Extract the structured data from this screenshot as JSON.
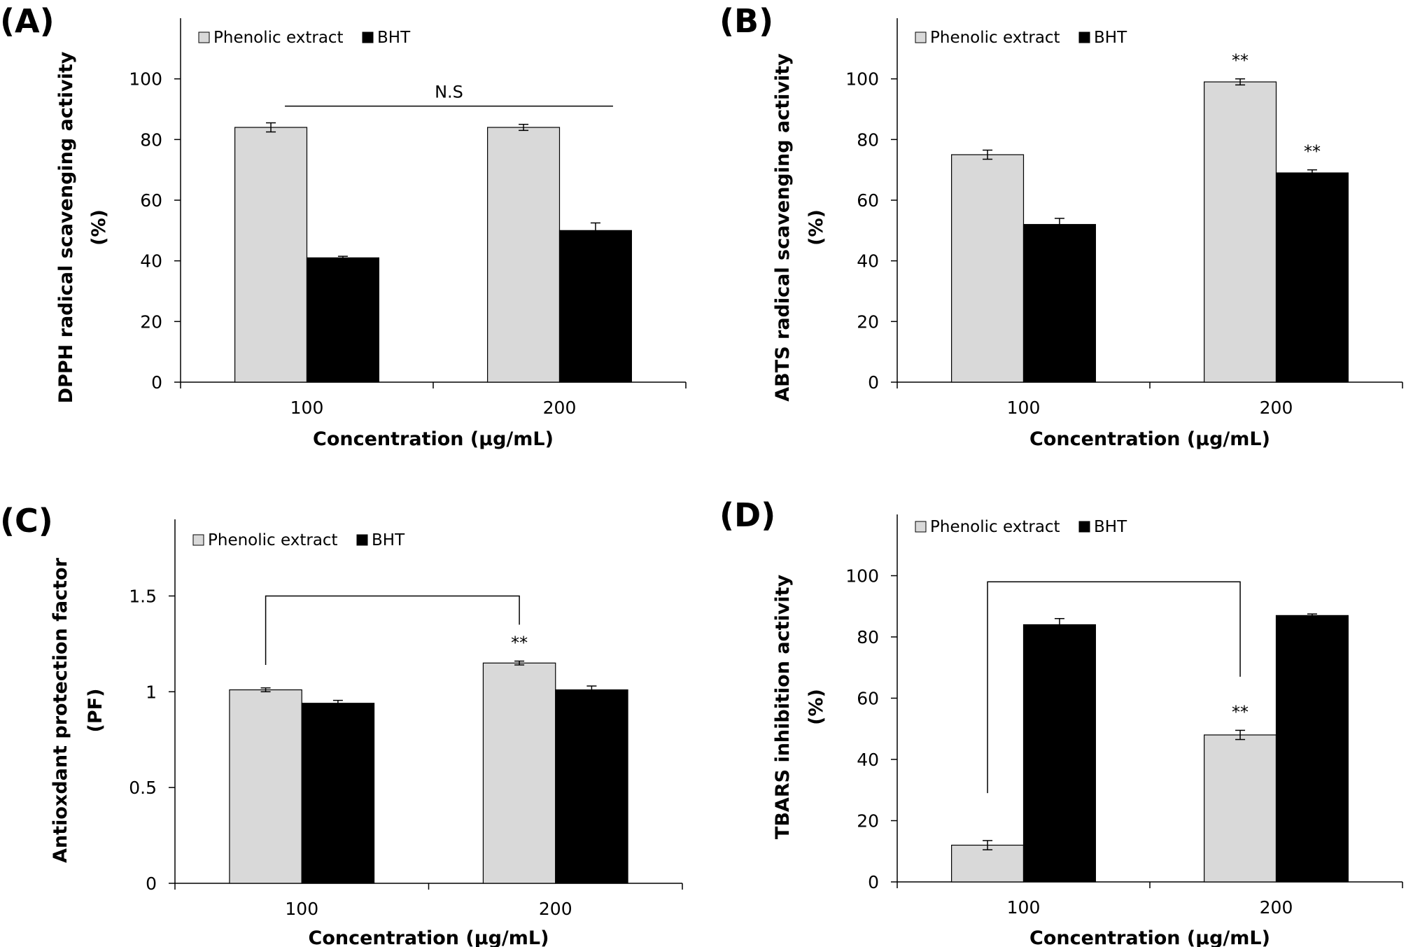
{
  "chart_data": [
    {
      "type": "bar",
      "panel_label": "(A)",
      "categories": [
        "100",
        "200"
      ],
      "series": [
        {
          "name": "Phenolic extract",
          "values": [
            84,
            84
          ],
          "errors": [
            1.5,
            1.0
          ],
          "color": "#d9d9d9"
        },
        {
          "name": "BHT",
          "values": [
            41,
            50
          ],
          "errors": [
            0.5,
            2.5
          ],
          "color": "#000000"
        }
      ],
      "xlabel": "Concentration (μg/mL)",
      "ylabel": [
        "DPPH radical scavenging activity",
        "(%)"
      ],
      "ylim": [
        0,
        120
      ],
      "yticks": [
        "0",
        "20",
        "40",
        "60",
        "80",
        "100"
      ],
      "ytick_values": [
        0,
        20,
        40,
        60,
        80,
        100
      ],
      "legend": "top-left",
      "grid": false,
      "annotations": [
        {
          "kind": "line",
          "text": "N.S",
          "y": 91,
          "from": [
            0,
            0
          ],
          "to": [
            1,
            1
          ]
        }
      ]
    },
    {
      "type": "bar",
      "panel_label": "(B)",
      "categories": [
        "100",
        "200"
      ],
      "series": [
        {
          "name": "Phenolic extract",
          "values": [
            75,
            99
          ],
          "errors": [
            1.5,
            1.0
          ],
          "color": "#d9d9d9"
        },
        {
          "name": "BHT",
          "values": [
            52,
            69
          ],
          "errors": [
            2.0,
            1.0
          ],
          "color": "#000000"
        }
      ],
      "xlabel": "Concentration (μg/mL)",
      "ylabel": [
        "ABTS radical scavenging activity",
        "(%)"
      ],
      "ylim": [
        0,
        120
      ],
      "yticks": [
        "0",
        "20",
        "40",
        "60",
        "80",
        "100"
      ],
      "ytick_values": [
        0,
        20,
        40,
        60,
        80,
        100
      ],
      "legend": "top-left",
      "grid": false,
      "annotations": [
        {
          "kind": "star",
          "text": "**",
          "category": 1,
          "series": 0
        },
        {
          "kind": "star",
          "text": "**",
          "category": 1,
          "series": 1
        }
      ]
    },
    {
      "type": "bar",
      "panel_label": "(C)",
      "categories": [
        "100",
        "200"
      ],
      "series": [
        {
          "name": "Phenolic extract",
          "values": [
            1.01,
            1.15
          ],
          "errors": [
            0.01,
            0.01
          ],
          "color": "#d9d9d9"
        },
        {
          "name": "BHT",
          "values": [
            0.94,
            1.01
          ],
          "errors": [
            0.015,
            0.02
          ],
          "color": "#000000"
        }
      ],
      "xlabel": "Concentration (μg/mL)",
      "ylabel": [
        "Antioxdant protection factor",
        "(PF)"
      ],
      "ylim": [
        0,
        1.9
      ],
      "yticks": [
        "0",
        "0.5",
        "1",
        "1.5"
      ],
      "ytick_values": [
        0,
        0.5,
        1,
        1.5
      ],
      "legend": "top-left",
      "grid": false,
      "annotations": [
        {
          "kind": "bracket",
          "text": "",
          "y": 1.5,
          "from": [
            0,
            0
          ],
          "to": [
            1,
            0
          ],
          "drop_from": 1.14,
          "drop_to": 1.35
        },
        {
          "kind": "star",
          "text": "**",
          "category": 1,
          "series": 0
        }
      ]
    },
    {
      "type": "bar",
      "panel_label": "(D)",
      "categories": [
        "100",
        "200"
      ],
      "series": [
        {
          "name": "Phenolic extract",
          "values": [
            12,
            48
          ],
          "errors": [
            1.5,
            1.5
          ],
          "color": "#d9d9d9"
        },
        {
          "name": "BHT",
          "values": [
            84,
            87
          ],
          "errors": [
            2.0,
            0.5
          ],
          "color": "#000000"
        }
      ],
      "xlabel": "Concentration (μg/mL)",
      "ylabel": [
        "TBARS inhibition activity",
        "(%)"
      ],
      "ylim": [
        0,
        120
      ],
      "yticks": [
        "0",
        "20",
        "40",
        "60",
        "80",
        "100"
      ],
      "ytick_values": [
        0,
        20,
        40,
        60,
        80,
        100
      ],
      "legend": "top-left",
      "grid": false,
      "annotations": [
        {
          "kind": "bracket",
          "text": "",
          "y": 98,
          "from": [
            0,
            0
          ],
          "to": [
            1,
            0
          ],
          "drop_from": 29,
          "drop_to": 67
        },
        {
          "kind": "star",
          "text": "**",
          "category": 1,
          "series": 0
        }
      ]
    }
  ]
}
